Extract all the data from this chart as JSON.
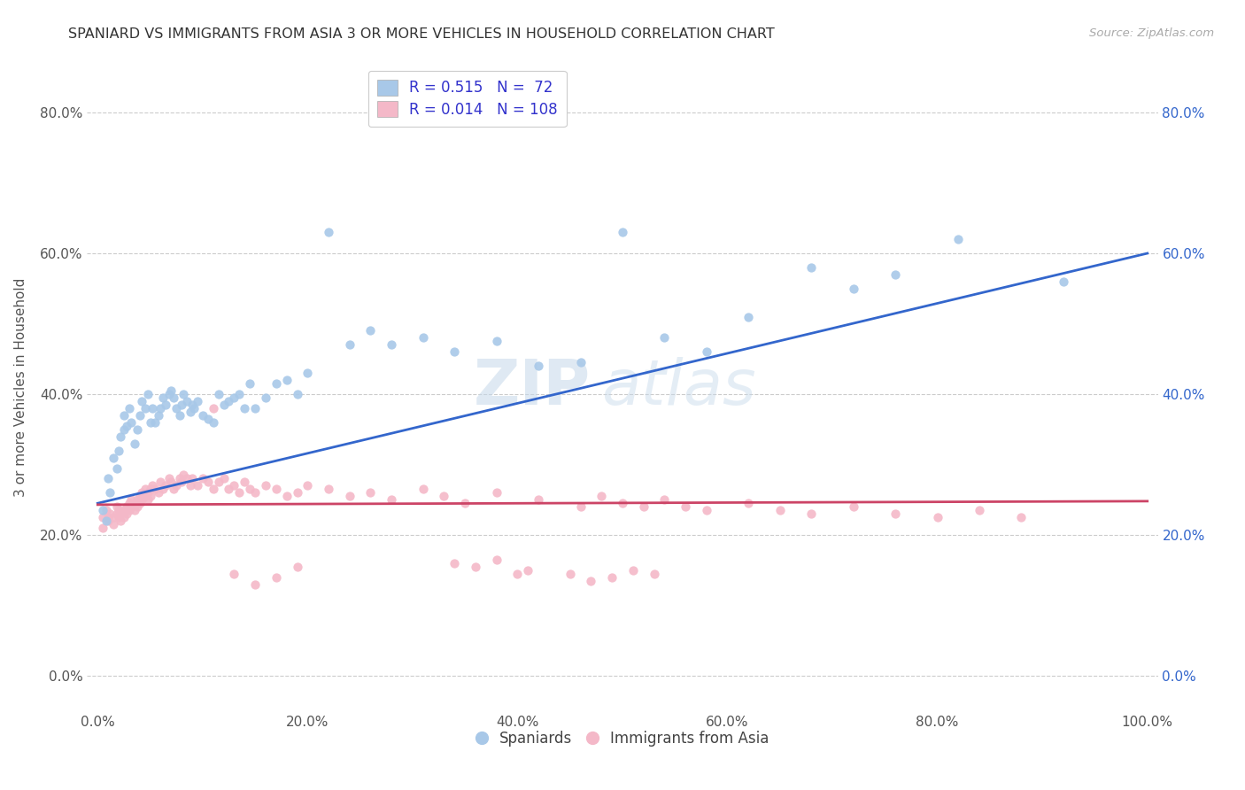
{
  "title": "SPANIARD VS IMMIGRANTS FROM ASIA 3 OR MORE VEHICLES IN HOUSEHOLD CORRELATION CHART",
  "source": "Source: ZipAtlas.com",
  "ylabel_label": "3 or more Vehicles in Household",
  "watermark_zip": "ZIP",
  "watermark_atlas": "atlas",
  "spaniards_color": "#a8c8e8",
  "immigrants_color": "#f4b8c8",
  "trendline_spaniards_color": "#3366cc",
  "trendline_immigrants_color": "#cc4466",
  "legend_box_blue": "#a8c8e8",
  "legend_box_pink": "#f4b8c8",
  "legend_text_color": "#3333cc",
  "R_spaniards": 0.515,
  "N_spaniards": 72,
  "R_immigrants": 0.014,
  "N_immigrants": 108,
  "spaniards_x": [
    0.005,
    0.008,
    0.01,
    0.012,
    0.015,
    0.018,
    0.02,
    0.022,
    0.025,
    0.025,
    0.028,
    0.03,
    0.032,
    0.035,
    0.038,
    0.04,
    0.042,
    0.045,
    0.048,
    0.05,
    0.052,
    0.055,
    0.058,
    0.06,
    0.062,
    0.065,
    0.068,
    0.07,
    0.072,
    0.075,
    0.078,
    0.08,
    0.082,
    0.085,
    0.088,
    0.09,
    0.092,
    0.095,
    0.1,
    0.105,
    0.11,
    0.115,
    0.12,
    0.125,
    0.13,
    0.135,
    0.14,
    0.145,
    0.15,
    0.16,
    0.17,
    0.18,
    0.19,
    0.2,
    0.22,
    0.24,
    0.26,
    0.28,
    0.31,
    0.34,
    0.38,
    0.42,
    0.46,
    0.5,
    0.54,
    0.58,
    0.62,
    0.68,
    0.72,
    0.76,
    0.82,
    0.92
  ],
  "spaniards_y": [
    0.235,
    0.22,
    0.28,
    0.26,
    0.31,
    0.295,
    0.32,
    0.34,
    0.35,
    0.37,
    0.355,
    0.38,
    0.36,
    0.33,
    0.35,
    0.37,
    0.39,
    0.38,
    0.4,
    0.36,
    0.38,
    0.36,
    0.37,
    0.38,
    0.395,
    0.385,
    0.4,
    0.405,
    0.395,
    0.38,
    0.37,
    0.385,
    0.4,
    0.39,
    0.375,
    0.385,
    0.38,
    0.39,
    0.37,
    0.365,
    0.36,
    0.4,
    0.385,
    0.39,
    0.395,
    0.4,
    0.38,
    0.415,
    0.38,
    0.395,
    0.415,
    0.42,
    0.4,
    0.43,
    0.63,
    0.47,
    0.49,
    0.47,
    0.48,
    0.46,
    0.475,
    0.44,
    0.445,
    0.63,
    0.48,
    0.46,
    0.51,
    0.58,
    0.55,
    0.57,
    0.62,
    0.56
  ],
  "immigrants_x": [
    0.005,
    0.005,
    0.008,
    0.01,
    0.01,
    0.012,
    0.015,
    0.015,
    0.018,
    0.018,
    0.02,
    0.02,
    0.022,
    0.022,
    0.025,
    0.025,
    0.028,
    0.028,
    0.03,
    0.03,
    0.032,
    0.032,
    0.035,
    0.035,
    0.038,
    0.038,
    0.04,
    0.04,
    0.042,
    0.042,
    0.045,
    0.045,
    0.048,
    0.048,
    0.05,
    0.05,
    0.052,
    0.055,
    0.058,
    0.06,
    0.062,
    0.065,
    0.068,
    0.07,
    0.072,
    0.075,
    0.078,
    0.08,
    0.082,
    0.085,
    0.088,
    0.09,
    0.095,
    0.1,
    0.105,
    0.11,
    0.115,
    0.12,
    0.125,
    0.13,
    0.135,
    0.14,
    0.145,
    0.15,
    0.16,
    0.17,
    0.18,
    0.19,
    0.2,
    0.22,
    0.24,
    0.26,
    0.28,
    0.31,
    0.33,
    0.35,
    0.38,
    0.42,
    0.46,
    0.48,
    0.5,
    0.52,
    0.54,
    0.56,
    0.58,
    0.62,
    0.65,
    0.68,
    0.72,
    0.76,
    0.8,
    0.84,
    0.88,
    0.11,
    0.13,
    0.15,
    0.17,
    0.19,
    0.38,
    0.41,
    0.45,
    0.47,
    0.49,
    0.51,
    0.53,
    0.34,
    0.36,
    0.4
  ],
  "immigrants_y": [
    0.225,
    0.21,
    0.235,
    0.225,
    0.22,
    0.23,
    0.225,
    0.215,
    0.24,
    0.23,
    0.235,
    0.225,
    0.22,
    0.23,
    0.235,
    0.225,
    0.24,
    0.23,
    0.245,
    0.235,
    0.25,
    0.24,
    0.245,
    0.235,
    0.25,
    0.24,
    0.255,
    0.245,
    0.26,
    0.25,
    0.265,
    0.255,
    0.26,
    0.25,
    0.265,
    0.255,
    0.27,
    0.265,
    0.26,
    0.275,
    0.265,
    0.27,
    0.28,
    0.275,
    0.265,
    0.27,
    0.28,
    0.275,
    0.285,
    0.28,
    0.27,
    0.28,
    0.27,
    0.28,
    0.275,
    0.265,
    0.275,
    0.28,
    0.265,
    0.27,
    0.26,
    0.275,
    0.265,
    0.26,
    0.27,
    0.265,
    0.255,
    0.26,
    0.27,
    0.265,
    0.255,
    0.26,
    0.25,
    0.265,
    0.255,
    0.245,
    0.26,
    0.25,
    0.24,
    0.255,
    0.245,
    0.24,
    0.25,
    0.24,
    0.235,
    0.245,
    0.235,
    0.23,
    0.24,
    0.23,
    0.225,
    0.235,
    0.225,
    0.38,
    0.145,
    0.13,
    0.14,
    0.155,
    0.165,
    0.15,
    0.145,
    0.135,
    0.14,
    0.15,
    0.145,
    0.16,
    0.155,
    0.145
  ],
  "xlim": [
    -0.01,
    1.01
  ],
  "ylim": [
    -0.05,
    0.87
  ],
  "xtick_positions": [
    0.0,
    0.2,
    0.4,
    0.6,
    0.8,
    1.0
  ],
  "ytick_positions": [
    0.0,
    0.2,
    0.4,
    0.6,
    0.8
  ],
  "background_color": "#ffffff",
  "grid_color": "#cccccc",
  "title_fontsize": 11.5,
  "axis_fontsize": 11,
  "right_tick_color": "#3366cc"
}
